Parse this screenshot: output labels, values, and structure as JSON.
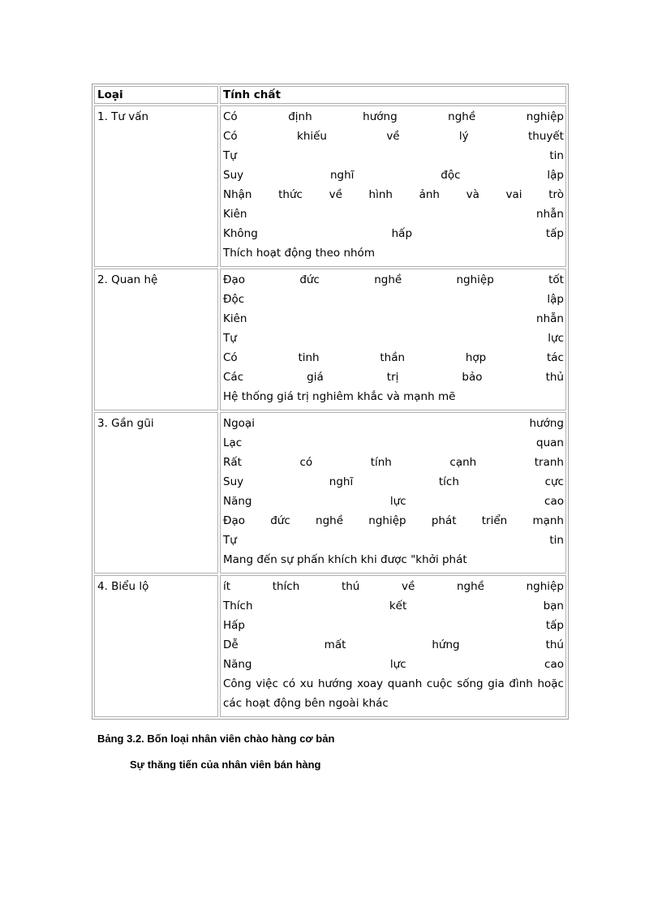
{
  "table": {
    "headers": [
      "Loại",
      "Tính chất"
    ],
    "rows": [
      {
        "type": "1. Tư vấn",
        "lines": [
          "Có định hướng nghề nghiệp",
          "Có khiếu về lý thuyết",
          "Tự tin",
          "Suy nghĩ độc lập",
          "Nhận thức về hình ảnh và vai trò",
          "Kiên nhẫn",
          "Không hấp tấp",
          "Thích hoạt động theo nhóm"
        ]
      },
      {
        "type": "2. Quan hệ",
        "lines": [
          "Đạo đức nghề nghiệp tốt",
          "Độc lập",
          "Kiên nhẫn",
          "Tự lực",
          "Có tinh thần hợp tác",
          "Các giá trị bảo thủ",
          "Hệ thống giá trị nghiêm khắc và mạnh mẽ"
        ]
      },
      {
        "type": "3. Gần gũi",
        "lines": [
          "Ngoại hướng",
          "Lạc quan",
          "Rất có tính cạnh tranh",
          "Suy nghĩ tích cực",
          "Năng lực cao",
          "Đạo đức nghề nghiệp phát triển mạnh",
          "Tự tin",
          "Mang đến sự phấn khích khi được \"khởi phát"
        ]
      },
      {
        "type": "4. Biểu lộ",
        "lines": [
          "ít thích thú về nghề nghiệp",
          "Thích kết bạn",
          "Hấp tấp",
          "Dễ mất hứng thú",
          "Năng lực cao",
          "Công việc có xu hướng xoay quanh cuộc sống gia đình hoặc",
          "các hoạt động bên ngoài khác"
        ]
      }
    ]
  },
  "caption": "Bảng 3.2. Bốn loại nhân viên chào hàng cơ bản",
  "subheading": "Sự thăng tiến của nhân viên bán hàng"
}
